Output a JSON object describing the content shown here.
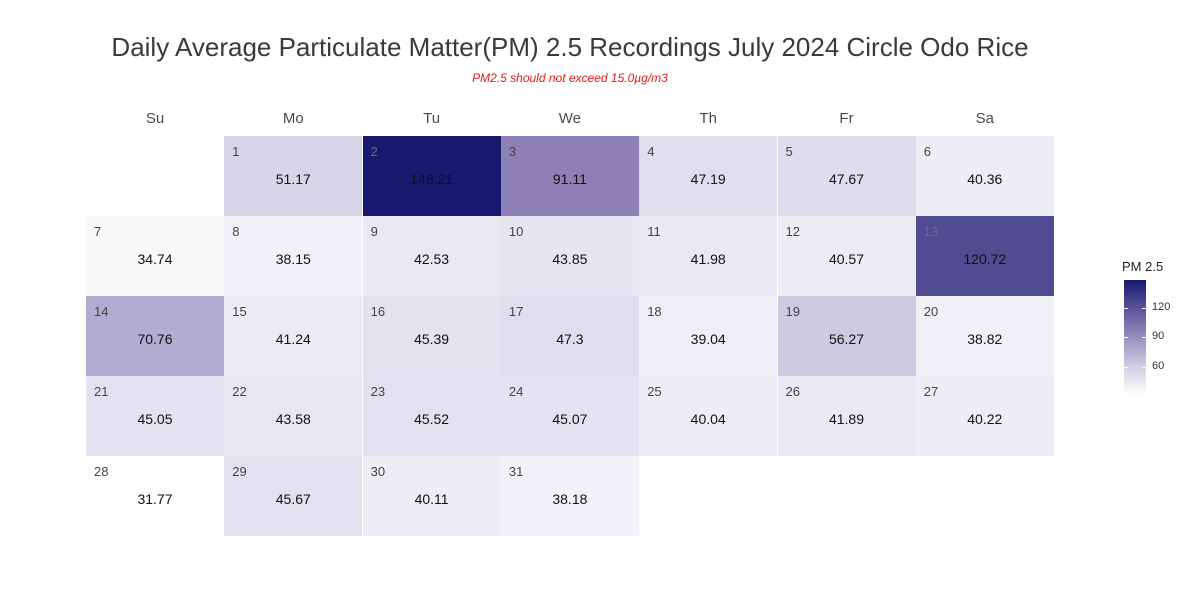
{
  "chart_data": {
    "type": "heatmap",
    "title": "Daily Average Particulate Matter(PM) 2.5 Recordings July 2024 Circle Odo Rice",
    "subtitle": "PM2.5 should not exceed 15.0µg/m3",
    "weekdays": [
      "Su",
      "Mo",
      "Tu",
      "We",
      "Th",
      "Fr",
      "Sa"
    ],
    "first_weekday_index": 1,
    "days": [
      1,
      2,
      3,
      4,
      5,
      6,
      7,
      8,
      9,
      10,
      11,
      12,
      13,
      14,
      15,
      16,
      17,
      18,
      19,
      20,
      21,
      22,
      23,
      24,
      25,
      26,
      27,
      28,
      29,
      30,
      31
    ],
    "values": [
      51.17,
      148.21,
      91.11,
      47.19,
      47.67,
      40.36,
      34.74,
      38.15,
      42.53,
      43.85,
      41.98,
      40.57,
      120.72,
      70.76,
      41.24,
      45.39,
      47.3,
      39.04,
      56.27,
      38.82,
      45.05,
      43.58,
      45.52,
      45.07,
      40.04,
      41.89,
      40.22,
      31.77,
      45.67,
      40.11,
      38.18
    ],
    "legend": {
      "title": "PM 2.5",
      "ticks": [
        60,
        90,
        120
      ],
      "range": [
        31.77,
        148.21
      ],
      "colors": [
        "#ffffff",
        "#d0cde4",
        "#8f82b8",
        "#191970"
      ]
    }
  }
}
